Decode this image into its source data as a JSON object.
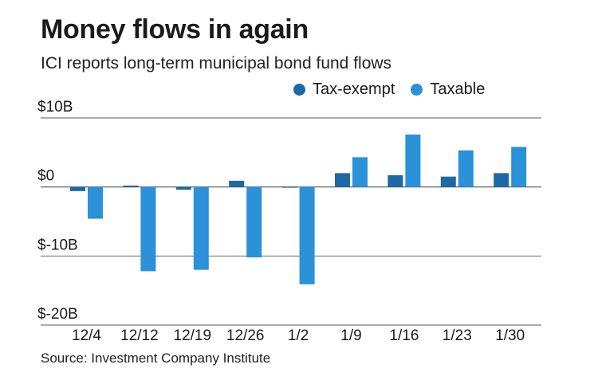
{
  "header": {
    "title": "Money flows in again",
    "subtitle": "ICI reports long-term municipal bond fund flows"
  },
  "footer": {
    "source": "Source: Investment Company Institute"
  },
  "colors": {
    "tax_exempt": "#1b6aa5",
    "taxable": "#2b91d9",
    "gridline": "#555555"
  },
  "chart_data": {
    "type": "bar",
    "title": "Money flows in again",
    "subtitle": "ICI reports long-term municipal bond fund flows",
    "xlabel": "",
    "ylabel": "",
    "ylim": [
      -20,
      10
    ],
    "yticks": [
      10,
      0,
      -10,
      -20
    ],
    "ytick_labels": [
      "$10B",
      "$0",
      "$-10B",
      "$-20B"
    ],
    "legend_position": "top-right",
    "categories": [
      "12/4",
      "12/12",
      "12/19",
      "12/26",
      "1/2",
      "1/9",
      "1/16",
      "1/23",
      "1/30"
    ],
    "series": [
      {
        "name": "Tax-exempt",
        "values": [
          -0.6,
          0.2,
          -0.4,
          0.9,
          -0.1,
          2.0,
          1.7,
          1.5,
          2.0
        ]
      },
      {
        "name": "Taxable",
        "values": [
          -4.6,
          -12.2,
          -12.0,
          -10.2,
          -14.1,
          4.3,
          7.6,
          5.3,
          5.8
        ]
      }
    ]
  }
}
